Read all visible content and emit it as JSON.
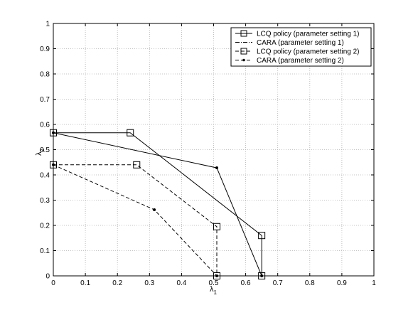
{
  "chart_data": {
    "type": "line",
    "title": "",
    "xlabel": "λ₁",
    "ylabel": "λ₂",
    "xlabel_main": "λ",
    "xlabel_sub": "1",
    "ylabel_main": "λ",
    "ylabel_sub": "2",
    "xlim": [
      0,
      1
    ],
    "ylim": [
      0,
      1
    ],
    "xticks": [
      "0",
      "0.1",
      "0.2",
      "0.3",
      "0.4",
      "0.5",
      "0.6",
      "0.7",
      "0.8",
      "0.9",
      "1"
    ],
    "yticks": [
      "0",
      "0.1",
      "0.2",
      "0.3",
      "0.4",
      "0.5",
      "0.6",
      "0.7",
      "0.8",
      "0.9",
      "1"
    ],
    "grid": true,
    "legend_position": "top-right",
    "series": [
      {
        "name": "LCQ policy (parameter setting 1)",
        "line": "solid",
        "marker": "square",
        "points": [
          [
            0,
            0.567
          ],
          [
            0.24,
            0.567
          ],
          [
            0.65,
            0.16
          ],
          [
            0.65,
            0
          ]
        ]
      },
      {
        "name": "CARA (parameter setting 1)",
        "line": "solid",
        "marker": "dot",
        "points": [
          [
            0,
            0.567
          ],
          [
            0.51,
            0.428
          ],
          [
            0.65,
            0
          ]
        ]
      },
      {
        "name": "LCQ policy (parameter setting 2)",
        "line": "dashed",
        "marker": "square",
        "points": [
          [
            0,
            0.44
          ],
          [
            0.26,
            0.44
          ],
          [
            0.51,
            0.195
          ],
          [
            0.51,
            0
          ]
        ]
      },
      {
        "name": "CARA (parameter setting 2)",
        "line": "dashed",
        "marker": "dot",
        "points": [
          [
            0,
            0.44
          ],
          [
            0.315,
            0.262
          ],
          [
            0.51,
            0
          ]
        ]
      }
    ],
    "legend": [
      {
        "label": "LCQ policy (parameter setting 1)",
        "line": "solid",
        "marker": "square"
      },
      {
        "label": "CARA (parameter setting 1)",
        "line": "dashdot",
        "marker": "none"
      },
      {
        "label": "LCQ policy (parameter setting 2)",
        "line": "dashed",
        "marker": "square"
      },
      {
        "label": "CARA (parameter setting 2)",
        "line": "dashed",
        "marker": "dot"
      }
    ]
  }
}
